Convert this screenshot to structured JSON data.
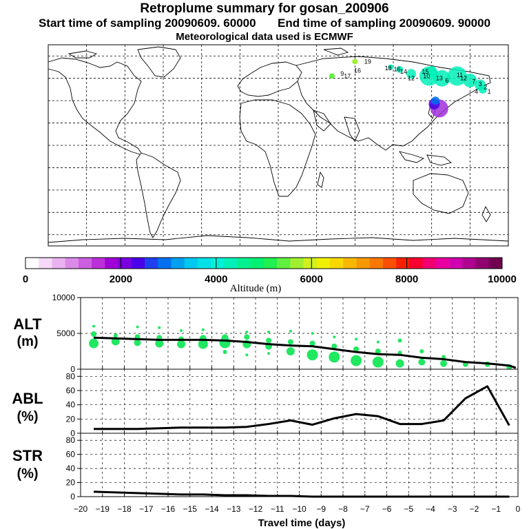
{
  "header": {
    "title": "Retroplume summary for gosan_200906",
    "start_label": "Start time of sampling 20090609. 60000",
    "end_label": "End time of sampling 20090609. 90000",
    "met_note": "Meteorological data used is ECMWF"
  },
  "colorbar": {
    "label": "Altitude (m)",
    "ticks": [
      "0",
      "2000",
      "4000",
      "6000",
      "8000",
      "10000"
    ],
    "colors": [
      "#ffffff",
      "#f5d9f7",
      "#eab3f0",
      "#dc8ae8",
      "#cc5fe0",
      "#bb30d8",
      "#a000d8",
      "#7a00e0",
      "#4a00e8",
      "#2040f0",
      "#0070f0",
      "#00a0f0",
      "#00c8f0",
      "#00e0e8",
      "#00f0d8",
      "#00f0b8",
      "#00f090",
      "#00f070",
      "#20f050",
      "#60f040",
      "#a0f030",
      "#d0f020",
      "#f0f000",
      "#f8d800",
      "#f8b800",
      "#f89800",
      "#f87800",
      "#f85000",
      "#f82000",
      "#f80030",
      "#f00070",
      "#e800a0",
      "#d000b0",
      "#b00090",
      "#900070",
      "#700050"
    ]
  },
  "map": {
    "source_marker_color": "#a030d8",
    "plume_labels": [
      {
        "text": "19",
        "lon": 70,
        "lat": 75
      },
      {
        "text": "18",
        "lon": 86,
        "lat": 69
      },
      {
        "text": "16",
        "lon": 93,
        "lat": 68
      },
      {
        "text": "14",
        "lon": 98,
        "lat": 66
      },
      {
        "text": "12",
        "lon": 104,
        "lat": 60
      },
      {
        "text": "15",
        "lon": 115,
        "lat": 66
      },
      {
        "text": "10",
        "lon": 116,
        "lat": 62
      },
      {
        "text": "13",
        "lon": 126,
        "lat": 60
      },
      {
        "text": "6",
        "lon": 132,
        "lat": 58
      },
      {
        "text": "11",
        "lon": 142,
        "lat": 63
      },
      {
        "text": "12",
        "lon": 145,
        "lat": 60
      },
      {
        "text": "7",
        "lon": 153,
        "lat": 57
      },
      {
        "text": "3",
        "lon": 158,
        "lat": 55
      },
      {
        "text": "2",
        "lon": 162,
        "lat": 52
      },
      {
        "text": "1",
        "lon": 165,
        "lat": 48
      },
      {
        "text": "4",
        "lon": 155,
        "lat": 48
      },
      {
        "text": "9",
        "lon": 50,
        "lat": 64
      },
      {
        "text": "17",
        "lon": 54,
        "lat": 62
      },
      {
        "text": "16",
        "lon": 62,
        "lat": 67
      }
    ]
  },
  "panels": {
    "alt": {
      "label_line1": "ALT",
      "label_line2": "(m)",
      "yticks": [
        "10000",
        "5000",
        "0"
      ]
    },
    "abl": {
      "label_line1": "ABL",
      "label_line2": "(%)",
      "yticks": [
        "80",
        "60",
        "40",
        "20",
        "0"
      ]
    },
    "str": {
      "label_line1": "STR",
      "label_line2": "(%)",
      "yticks": [
        "80",
        "60",
        "40",
        "20",
        "0"
      ]
    },
    "xticks": [
      "−20",
      "−19",
      "−18",
      "−17",
      "−16",
      "−15",
      "−14",
      "−13",
      "−12",
      "−11",
      "−10",
      "−9",
      "−8",
      "−7",
      "−6",
      "−5",
      "−4",
      "−3",
      "−2",
      "−1",
      "0"
    ],
    "xlabel": "Travel time (days)"
  },
  "chart_data": [
    {
      "type": "line",
      "title": "ALT (m)",
      "xlabel": "Travel time (days)",
      "ylabel": "ALT (m)",
      "xlim": [
        -20,
        0
      ],
      "ylim": [
        0,
        10000
      ],
      "x": [
        -19.4,
        -18.4,
        -17.4,
        -16.4,
        -15.4,
        -14.4,
        -13.4,
        -12.4,
        -11.4,
        -10.4,
        -9.4,
        -8.4,
        -7.4,
        -6.4,
        -5.4,
        -4.4,
        -3.4,
        -2.4,
        -1.4,
        -0.4,
        -0.1
      ],
      "series": [
        {
          "name": "mean altitude",
          "values": [
            4400,
            4300,
            4200,
            4100,
            4100,
            4100,
            4000,
            3800,
            3500,
            3300,
            3200,
            2800,
            2400,
            2100,
            2000,
            1600,
            1400,
            1000,
            800,
            500,
            200
          ]
        }
      ],
      "scatter": {
        "color": "#20e860",
        "x": [
          -19.4,
          -19.4,
          -19.4,
          -18.4,
          -18.4,
          -17.4,
          -17.4,
          -17.4,
          -16.4,
          -16.4,
          -16.4,
          -15.4,
          -15.4,
          -15.4,
          -14.4,
          -14.4,
          -14.4,
          -13.4,
          -13.4,
          -13.4,
          -12.4,
          -12.4,
          -12.4,
          -12.4,
          -11.4,
          -11.4,
          -11.4,
          -11.4,
          -10.4,
          -10.4,
          -10.4,
          -9.4,
          -9.4,
          -9.4,
          -8.4,
          -8.4,
          -8.4,
          -7.4,
          -7.4,
          -7.4,
          -6.4,
          -6.4,
          -6.4,
          -5.4,
          -5.4,
          -5.4,
          -4.4,
          -4.4,
          -3.4,
          -3.4,
          -2.4,
          -1.4,
          -0.4
        ],
        "values": [
          3600,
          4900,
          6000,
          3900,
          4700,
          3700,
          4500,
          5900,
          3600,
          4400,
          5800,
          3500,
          4200,
          5400,
          3500,
          4300,
          5500,
          3700,
          4400,
          2400,
          3500,
          4500,
          5200,
          2000,
          3200,
          4000,
          5200,
          2200,
          2500,
          3800,
          5300,
          2000,
          3600,
          5000,
          1700,
          3200,
          4500,
          1200,
          2800,
          4200,
          1000,
          2500,
          3800,
          800,
          2300,
          4000,
          1000,
          2500,
          800,
          1700,
          700,
          700,
          300
        ],
        "sizes": [
          7,
          4,
          2,
          6,
          3,
          5,
          4,
          2,
          6,
          4,
          2,
          6,
          4,
          2,
          7,
          5,
          2,
          8,
          5,
          3,
          6,
          4,
          2,
          2,
          5,
          4,
          2,
          2,
          6,
          4,
          2,
          8,
          4,
          2,
          8,
          4,
          2,
          8,
          4,
          2,
          8,
          4,
          2,
          6,
          3,
          3,
          5,
          3,
          5,
          3,
          4,
          4,
          4
        ]
      }
    },
    {
      "type": "line",
      "title": "ABL (%)",
      "xlabel": "Travel time (days)",
      "ylabel": "ABL (%)",
      "xlim": [
        -20,
        0
      ],
      "ylim": [
        0,
        90
      ],
      "x": [
        -19.4,
        -18.4,
        -17.4,
        -16.4,
        -15.4,
        -14.4,
        -13.4,
        -12.4,
        -11.4,
        -10.4,
        -9.4,
        -8.4,
        -7.4,
        -6.4,
        -5.4,
        -4.4,
        -3.4,
        -2.4,
        -1.4,
        -0.4
      ],
      "series": [
        {
          "name": "ABL fraction",
          "values": [
            6,
            6,
            6,
            7,
            8,
            8,
            8,
            9,
            13,
            18,
            12,
            21,
            27,
            24,
            13,
            13,
            18,
            49,
            66,
            11
          ]
        }
      ]
    },
    {
      "type": "line",
      "title": "STR (%)",
      "xlabel": "Travel time (days)",
      "ylabel": "STR (%)",
      "xlim": [
        -20,
        0
      ],
      "ylim": [
        0,
        90
      ],
      "x": [
        -19.4,
        -18.4,
        -17.4,
        -16.4,
        -15.4,
        -14.4,
        -13.4,
        -12.4,
        -11.4,
        -10.4,
        -9.4,
        -8.4,
        -7.4,
        -6.4,
        -5.4,
        -4.4,
        -3.4,
        -2.4,
        -1.4,
        -0.4
      ],
      "series": [
        {
          "name": "STR fraction",
          "values": [
            7,
            6,
            5,
            4,
            3,
            3,
            2,
            2,
            1,
            1,
            0,
            0,
            0,
            0,
            0,
            0,
            0,
            0,
            0,
            0
          ]
        }
      ]
    }
  ]
}
